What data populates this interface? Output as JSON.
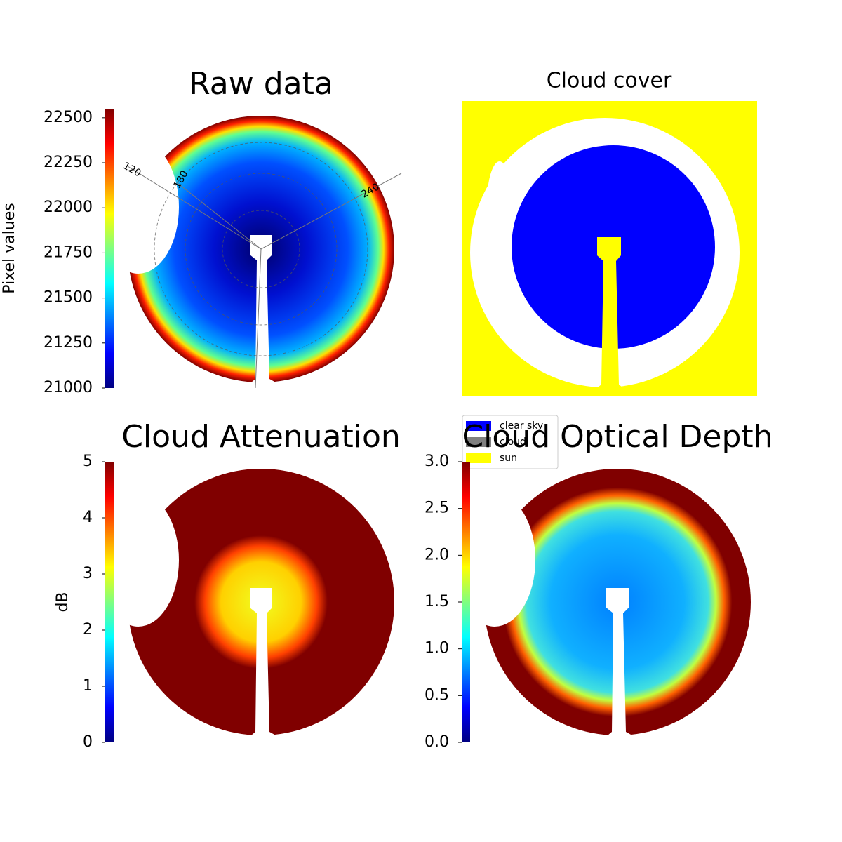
{
  "chart_data": [
    {
      "type": "image",
      "title": "Raw data",
      "angle_labels": [
        "120",
        "180",
        "240"
      ],
      "colorbar": {
        "label": "Pixel values",
        "colormap": "jet",
        "ylim": [
          21000,
          22550
        ],
        "yticks": [
          21000,
          21250,
          21500,
          21750,
          22000,
          22250,
          22500
        ]
      }
    },
    {
      "type": "image",
      "title": "Cloud cover",
      "legend": "lower left",
      "series": [
        {
          "name": "clear sky",
          "color": "#0000ff"
        },
        {
          "name": "cloud",
          "color": "#808080"
        },
        {
          "name": "sun",
          "color": "#ffff00"
        }
      ]
    },
    {
      "type": "image",
      "title": "Cloud Attenuation",
      "colorbar": {
        "label": "dB",
        "colormap": "jet",
        "ylim": [
          0,
          5
        ],
        "yticks": [
          0,
          1,
          2,
          3,
          4,
          5
        ]
      }
    },
    {
      "type": "image",
      "title": "Cloud Optical Depth",
      "colorbar": {
        "colormap": "jet",
        "ylim": [
          0,
          3
        ],
        "yticks": [
          {
            "value": 0,
            "label": "0.0"
          },
          {
            "value": 0.5,
            "label": "0.5"
          },
          {
            "value": 1,
            "label": "1.0"
          },
          {
            "value": 1.5,
            "label": "1.5"
          },
          {
            "value": 2,
            "label": "2.0"
          },
          {
            "value": 2.5,
            "label": "2.5"
          },
          {
            "value": 3,
            "label": "3.0"
          }
        ]
      }
    }
  ]
}
